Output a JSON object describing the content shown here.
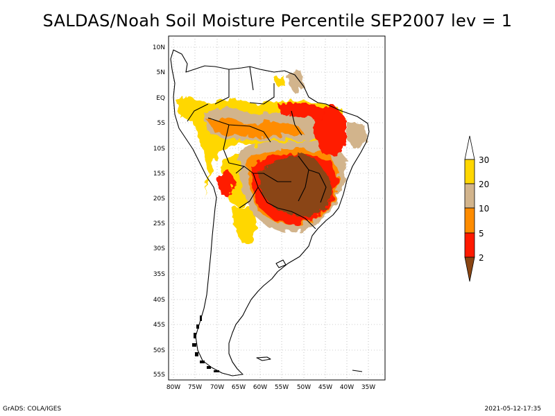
{
  "title": "SALDAS/Noah Soil Moisture Percentile SEP2007 lev = 1",
  "footer": {
    "left": "GrADS: COLA/IGES",
    "right": "2021-05-12-17:35"
  },
  "axes": {
    "lat_labels": [
      "10N",
      "5N",
      "EQ",
      "5S",
      "10S",
      "15S",
      "20S",
      "25S",
      "30S",
      "35S",
      "40S",
      "45S",
      "50S",
      "55S"
    ],
    "lon_labels": [
      "80W",
      "75W",
      "70W",
      "65W",
      "60W",
      "55W",
      "50W",
      "45W",
      "40W",
      "35W"
    ]
  },
  "legend": {
    "levels": [
      "2",
      "5",
      "10",
      "20",
      "30"
    ],
    "colors": {
      "lt2": "#8a4513",
      "2_5": "#ff1a00",
      "5_10": "#ff8c00",
      "10_20": "#d2b48c",
      "20_30": "#ffd700",
      "gt30": "#ffffff"
    }
  }
}
